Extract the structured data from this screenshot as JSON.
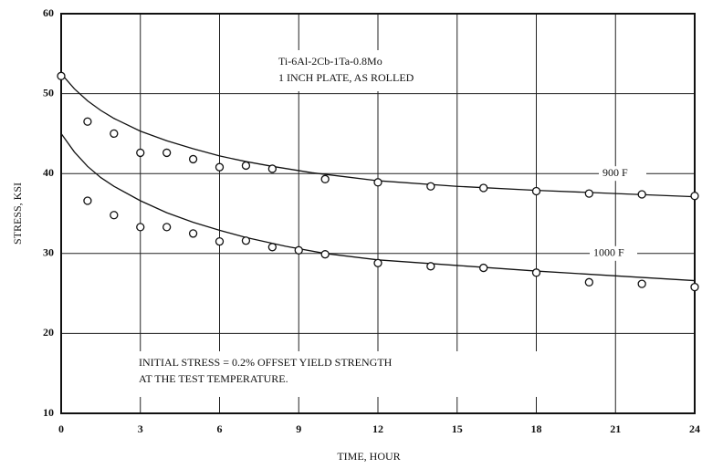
{
  "chart_data": {
    "type": "scatter",
    "title_lines": [
      "Ti-6Al-2Cb-1Ta-0.8Mo",
      "1 INCH PLATE, AS ROLLED"
    ],
    "annotation_lines": [
      "INITIAL STRESS = 0.2% OFFSET YIELD STRENGTH",
      "AT THE TEST TEMPERATURE."
    ],
    "x_label": "TIME, HOUR",
    "y_label": "STRESS, KSI",
    "xlim": [
      0,
      24
    ],
    "ylim": [
      10,
      60
    ],
    "xticks": [
      0,
      3,
      6,
      9,
      12,
      15,
      18,
      21,
      24
    ],
    "yticks": [
      10,
      20,
      30,
      40,
      50,
      60
    ],
    "grid": true,
    "series": [
      {
        "name": "900 F",
        "color": "#111111",
        "x": [
          0,
          1,
          2,
          3,
          4,
          5,
          6,
          7,
          8,
          10,
          12,
          14,
          16,
          18,
          20,
          22,
          24
        ],
        "values": [
          52.2,
          46.5,
          45.0,
          42.6,
          42.6,
          41.8,
          40.8,
          41.0,
          40.6,
          39.3,
          38.9,
          38.4,
          38.2,
          37.8,
          37.5,
          37.4,
          37.2
        ],
        "fit": {
          "x": [
            0,
            0.5,
            1,
            1.5,
            2,
            3,
            4,
            5,
            6,
            7,
            8,
            9.5,
            12,
            15,
            18,
            21,
            24
          ],
          "values": [
            52.5,
            50.6,
            49.1,
            47.9,
            46.9,
            45.3,
            44.1,
            43.1,
            42.2,
            41.5,
            40.9,
            40.1,
            39.1,
            38.4,
            37.9,
            37.5,
            37.1
          ]
        }
      },
      {
        "name": "1000 F",
        "color": "#111111",
        "x": [
          1,
          2,
          3,
          4,
          5,
          6,
          7,
          8,
          9,
          10,
          12,
          14,
          16,
          18,
          20,
          22,
          24
        ],
        "values": [
          36.6,
          34.8,
          33.3,
          33.3,
          32.5,
          31.5,
          31.6,
          30.8,
          30.4,
          29.9,
          28.8,
          28.4,
          28.2,
          27.6,
          26.4,
          26.2,
          25.8
        ],
        "fit": {
          "x": [
            0,
            0.5,
            1,
            1.5,
            2,
            3,
            4,
            5,
            6,
            7,
            8.5,
            10,
            12,
            15,
            18,
            21,
            24
          ],
          "values": [
            45.0,
            42.7,
            40.9,
            39.5,
            38.4,
            36.6,
            35.1,
            33.9,
            32.9,
            32.0,
            30.9,
            30.0,
            29.2,
            28.5,
            27.8,
            27.2,
            26.6
          ]
        }
      }
    ]
  }
}
